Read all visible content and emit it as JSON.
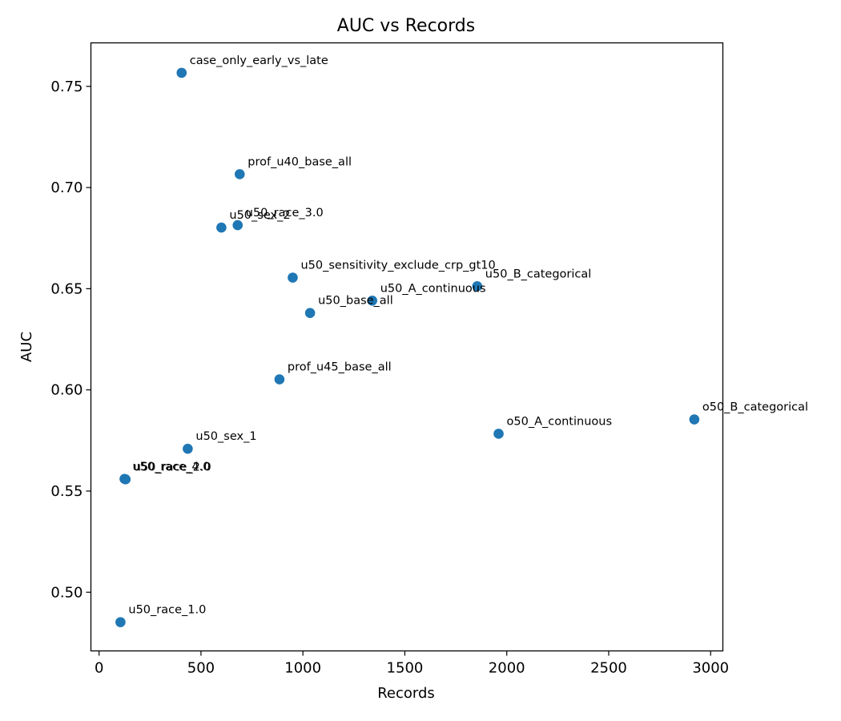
{
  "chart_data": {
    "type": "scatter",
    "title": "AUC vs Records",
    "xlabel": "Records",
    "ylabel": "AUC",
    "xlim": [
      -40,
      3060
    ],
    "ylim": [
      0.471,
      0.7715
    ],
    "xticks": [
      0,
      500,
      1000,
      1500,
      2000,
      2500,
      3000
    ],
    "xtick_labels": [
      "0",
      "500",
      "1000",
      "1500",
      "2000",
      "2500",
      "3000"
    ],
    "yticks": [
      0.5,
      0.55,
      0.6,
      0.65,
      0.7,
      0.75
    ],
    "ytick_labels": [
      "0.50",
      "0.55",
      "0.60",
      "0.65",
      "0.70",
      "0.75"
    ],
    "grid": false,
    "marker_color": "#1f77b4",
    "points": [
      {
        "label": "case_only_early_vs_late",
        "x": 405,
        "y": 0.7567
      },
      {
        "label": "prof_u40_base_all",
        "x": 690,
        "y": 0.7066
      },
      {
        "label": "u50_sex_2",
        "x": 600,
        "y": 0.6802
      },
      {
        "label": "u50_race_3.0",
        "x": 680,
        "y": 0.6814
      },
      {
        "label": "u50_sensitivity_exclude_crp_gt10",
        "x": 950,
        "y": 0.6555
      },
      {
        "label": "u50_B_categorical",
        "x": 1855,
        "y": 0.6512
      },
      {
        "label": "u50_A_continuous",
        "x": 1340,
        "y": 0.6441
      },
      {
        "label": "u50_base_all",
        "x": 1035,
        "y": 0.638
      },
      {
        "label": "prof_u45_base_all",
        "x": 885,
        "y": 0.6052
      },
      {
        "label": "o50_B_categorical",
        "x": 2920,
        "y": 0.5854
      },
      {
        "label": "o50_A_continuous",
        "x": 1960,
        "y": 0.5783
      },
      {
        "label": "u50_sex_1",
        "x": 435,
        "y": 0.5709
      },
      {
        "label": "u50_race_4.0",
        "x": 125,
        "y": 0.556
      },
      {
        "label": "u50_race_2.0",
        "x": 130,
        "y": 0.5558
      },
      {
        "label": "u50_race_1.0",
        "x": 105,
        "y": 0.4852
      }
    ]
  }
}
